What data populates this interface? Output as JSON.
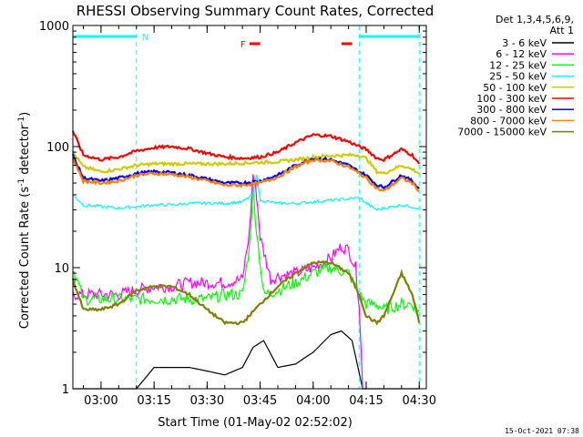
{
  "chart_data": {
    "type": "line",
    "title": "RHESSI Observing Summary Count Rates, Corrected",
    "xlabel": "Start Time (01-May-02 02:52:02)",
    "ylabel_main": "Corrected Count Rate (s",
    "ylabel_sup1": "-1",
    "ylabel_mid": " detector",
    "ylabel_sup2": "-1",
    "ylabel_end": ")",
    "y_scale": "log",
    "ylim": [
      1,
      1000
    ],
    "xlim": [
      "02:52:02",
      "04:32:00"
    ],
    "x_ticks": [
      "03:00",
      "03:15",
      "03:30",
      "03:45",
      "04:00",
      "04:15",
      "04:30"
    ],
    "y_ticks": [
      "1",
      "10",
      "100",
      "1000"
    ],
    "legend": {
      "header_line1": "Det 1,3,4,5,6,9,",
      "header_line2": "Att 1",
      "placement": "right"
    },
    "series": [
      {
        "name": "3 - 6 keV",
        "color": "#000000",
        "x": [
          "02:52",
          "03:00",
          "03:05",
          "03:10",
          "03:15",
          "03:20",
          "03:25",
          "03:30",
          "03:35",
          "03:40",
          "03:43",
          "03:46",
          "03:50",
          "03:55",
          "04:00",
          "04:05",
          "04:08",
          "04:11",
          "04:14",
          "04:17",
          "04:20",
          "04:25",
          "04:30"
        ],
        "y": [
          1,
          1,
          1,
          1,
          1.5,
          1.5,
          1.5,
          1.4,
          1.3,
          1.5,
          2.2,
          2.5,
          1.5,
          1.6,
          2.0,
          2.8,
          3.0,
          2.5,
          1.0,
          1,
          1,
          1,
          1
        ]
      },
      {
        "name": "6 - 12 keV",
        "color": "#ff00ff",
        "x": [
          "02:52",
          "02:55",
          "03:00",
          "03:05",
          "03:10",
          "03:15",
          "03:20",
          "03:25",
          "03:30",
          "03:35",
          "03:40",
          "03:42",
          "03:43",
          "03:44",
          "03:45",
          "03:48",
          "03:50",
          "03:55",
          "04:00",
          "04:05",
          "04:08",
          "04:10",
          "04:12",
          "04:13",
          "04:14",
          "04:15"
        ],
        "y": [
          6,
          6,
          6,
          6,
          6.5,
          7,
          7,
          7.5,
          7.5,
          7.5,
          8,
          20,
          60,
          40,
          18,
          8,
          8.5,
          9,
          10,
          12,
          15,
          14,
          10,
          5,
          1,
          1
        ]
      },
      {
        "name": "12 - 25 keV",
        "color": "#00ff00",
        "x": [
          "02:52",
          "02:55",
          "03:00",
          "03:05",
          "03:10",
          "03:15",
          "03:20",
          "03:25",
          "03:30",
          "03:35",
          "03:40",
          "03:42",
          "03:43",
          "03:44",
          "03:46",
          "03:50",
          "03:55",
          "04:00",
          "04:05",
          "04:10",
          "04:13",
          "04:15",
          "04:18",
          "04:20",
          "04:25",
          "04:28",
          "04:30"
        ],
        "y": [
          10,
          5.5,
          5.5,
          5.5,
          5.5,
          5.5,
          5.5,
          5.5,
          5.5,
          6,
          6,
          15,
          45,
          20,
          6,
          6.5,
          7.5,
          9,
          10,
          9,
          6,
          5,
          5,
          4.5,
          5,
          5,
          4.5
        ]
      },
      {
        "name": "25 - 50 keV",
        "color": "#00ffff",
        "x": [
          "02:52",
          "02:55",
          "03:00",
          "03:05",
          "03:10",
          "03:15",
          "03:20",
          "03:25",
          "03:30",
          "03:35",
          "03:40",
          "03:43",
          "03:44",
          "03:45",
          "03:50",
          "03:55",
          "04:00",
          "04:05",
          "04:10",
          "04:13",
          "04:15",
          "04:18",
          "04:20",
          "04:25",
          "04:30"
        ],
        "y": [
          40,
          33,
          32,
          31,
          32,
          33,
          33,
          34,
          34,
          34,
          35,
          40,
          60,
          36,
          34,
          34,
          35,
          36,
          37,
          38,
          34,
          30,
          31,
          33,
          31
        ]
      },
      {
        "name": "50 - 100 keV",
        "color": "#cccc00",
        "x": [
          "02:52",
          "02:55",
          "03:00",
          "03:05",
          "03:10",
          "03:15",
          "03:20",
          "03:25",
          "03:30",
          "03:35",
          "03:40",
          "03:45",
          "03:50",
          "03:55",
          "04:00",
          "04:05",
          "04:10",
          "04:13",
          "04:15",
          "04:18",
          "04:20",
          "04:25",
          "04:28",
          "04:30"
        ],
        "y": [
          90,
          68,
          62,
          65,
          70,
          72,
          72,
          72,
          72,
          72,
          73,
          74,
          75,
          78,
          82,
          84,
          85,
          85,
          80,
          62,
          60,
          70,
          65,
          60
        ]
      },
      {
        "name": "100 - 300 keV",
        "color": "#ff0000",
        "x": [
          "02:52",
          "02:55",
          "03:00",
          "03:05",
          "03:10",
          "03:15",
          "03:20",
          "03:25",
          "03:30",
          "03:35",
          "03:40",
          "03:45",
          "03:50",
          "03:55",
          "04:00",
          "04:05",
          "04:10",
          "04:13",
          "04:15",
          "04:18",
          "04:20",
          "04:25",
          "04:28",
          "04:30"
        ],
        "y": [
          135,
          85,
          78,
          82,
          92,
          98,
          100,
          96,
          88,
          82,
          80,
          82,
          90,
          108,
          125,
          122,
          110,
          100,
          95,
          80,
          78,
          95,
          85,
          72
        ]
      },
      {
        "name": "300 - 800 keV",
        "color": "#0000ff",
        "x": [
          "02:52",
          "02:55",
          "03:00",
          "03:05",
          "03:10",
          "03:15",
          "03:20",
          "03:25",
          "03:30",
          "03:35",
          "03:40",
          "03:45",
          "03:50",
          "03:55",
          "04:00",
          "04:05",
          "04:10",
          "04:13",
          "04:15",
          "04:18",
          "04:20",
          "04:25",
          "04:28",
          "04:30"
        ],
        "y": [
          85,
          55,
          52,
          55,
          60,
          62,
          61,
          58,
          54,
          50,
          50,
          52,
          58,
          70,
          80,
          78,
          70,
          62,
          58,
          48,
          46,
          58,
          52,
          45
        ]
      },
      {
        "name": "800 - 7000 keV",
        "color": "#ff8000",
        "x": [
          "02:52",
          "02:55",
          "03:00",
          "03:05",
          "03:10",
          "03:15",
          "03:20",
          "03:25",
          "03:30",
          "03:35",
          "03:40",
          "03:45",
          "03:50",
          "03:55",
          "04:00",
          "04:05",
          "04:10",
          "04:13",
          "04:15",
          "04:18",
          "04:20",
          "04:25",
          "04:28",
          "04:30"
        ],
        "y": [
          80,
          52,
          50,
          52,
          58,
          60,
          59,
          56,
          52,
          48,
          48,
          50,
          56,
          68,
          78,
          76,
          68,
          60,
          55,
          45,
          43,
          55,
          50,
          43
        ]
      },
      {
        "name": "7000 - 15000 keV",
        "color": "#808000",
        "x": [
          "02:52",
          "02:55",
          "03:00",
          "03:05",
          "03:10",
          "03:15",
          "03:20",
          "03:25",
          "03:30",
          "03:35",
          "03:40",
          "03:45",
          "03:50",
          "03:55",
          "04:00",
          "04:05",
          "04:10",
          "04:13",
          "04:15",
          "04:18",
          "04:20",
          "04:25",
          "04:28",
          "04:30"
        ],
        "y": [
          8,
          4.5,
          4.5,
          5,
          6.5,
          7,
          7,
          6,
          4.5,
          3.5,
          3.5,
          5,
          7,
          9,
          11,
          11,
          9,
          6,
          4,
          3.5,
          4,
          9,
          6,
          3.5
        ]
      }
    ],
    "flags": [
      {
        "label": "N",
        "color": "#00ffff",
        "segments": [
          [
            "02:52",
            "03:10"
          ],
          [
            "04:13",
            "04:30"
          ]
        ]
      },
      {
        "label": "F",
        "color": "#ff0000",
        "segments": [
          [
            "03:42",
            "03:45"
          ],
          [
            "04:08",
            "04:11"
          ]
        ]
      }
    ],
    "vlines": {
      "color": "#00ffff",
      "times": [
        "03:10",
        "04:13",
        "04:30"
      ]
    },
    "footer": "15-Oct-2021 07:38"
  },
  "ui": {
    "plot_bg": "#ffffff",
    "axis_color": "#000000"
  }
}
